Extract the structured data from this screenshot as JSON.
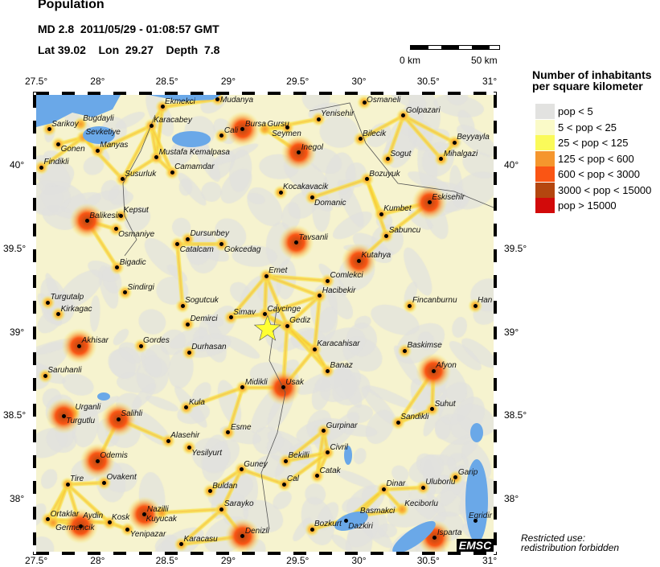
{
  "header": {
    "title": "Population",
    "event_line": "MD 2.8  2011/05/29 - 01:08:57 GMT",
    "location_line": "Lat 39.02    Lon  29.27    Depth  7.8"
  },
  "event": {
    "magnitude": "MD 2.8",
    "date": "2011/05/29",
    "time": "01:08:57 GMT",
    "lat": 39.02,
    "lon": 29.27,
    "depth": 7.8,
    "marker": "star-icon",
    "marker_color": "#ffff33"
  },
  "scale_bar": {
    "left_label": "0 km",
    "right_label": "50 km"
  },
  "map": {
    "lon_range": [
      27.5,
      31
    ],
    "lat_range": [
      37.686,
      40.425
    ],
    "lon_ticks": [
      "27.5°",
      "28°",
      "28.5°",
      "29°",
      "29.5°",
      "30°",
      "30.5°",
      "31°"
    ],
    "lat_ticks": [
      "40°",
      "39.5°",
      "39°",
      "38.5°",
      "38°"
    ],
    "lat_tick_values": [
      40,
      39.5,
      39,
      38.5,
      38
    ],
    "lon_tick_values": [
      27.5,
      28,
      28.5,
      29,
      29.5,
      30,
      30.5,
      31
    ],
    "water_color": "#6aa8e8",
    "cities": [
      {
        "name": "Ekmekci",
        "lon": 28.466,
        "lat": 40.353
      },
      {
        "name": "Mudanya",
        "lon": 28.89,
        "lat": 40.4
      },
      {
        "name": "Osmaneli",
        "lon": 30.01,
        "lat": 40.38
      },
      {
        "name": "Golpazari",
        "lon": 30.31,
        "lat": 40.3
      },
      {
        "name": "Sarikoy",
        "lon": 27.6,
        "lat": 40.22
      },
      {
        "name": "Bugdayli",
        "lon": 27.84,
        "lat": 40.25,
        "nodot": true
      },
      {
        "name": "Karacabey",
        "lon": 28.38,
        "lat": 40.24
      },
      {
        "name": "Cali",
        "lon": 28.92,
        "lat": 40.18
      },
      {
        "name": "Bursa",
        "lon": 29.08,
        "lat": 40.22
      },
      {
        "name": "Gursu",
        "lon": 29.25,
        "lat": 40.22,
        "nodot": true
      },
      {
        "name": "Seymen",
        "lon": 29.42,
        "lat": 40.23
      },
      {
        "name": "Yenisehir",
        "lon": 29.66,
        "lat": 40.28
      },
      {
        "name": "Sevketiye",
        "lon": 27.86,
        "lat": 40.17,
        "nodot": true
      },
      {
        "name": "Gonen",
        "lon": 27.67,
        "lat": 40.13
      },
      {
        "name": "Manyas",
        "lon": 27.97,
        "lat": 40.09
      },
      {
        "name": "Mustafa Kemalpasa",
        "lon": 28.42,
        "lat": 40.05
      },
      {
        "name": "Inegol",
        "lon": 29.51,
        "lat": 40.08
      },
      {
        "name": "Bilecik",
        "lon": 29.98,
        "lat": 40.16
      },
      {
        "name": "Beyyayla",
        "lon": 30.7,
        "lat": 40.14
      },
      {
        "name": "Sogut",
        "lon": 30.19,
        "lat": 40.04
      },
      {
        "name": "Mihalgazi",
        "lon": 30.6,
        "lat": 40.04
      },
      {
        "name": "Findikli",
        "lon": 27.54,
        "lat": 39.99
      },
      {
        "name": "Susurluk",
        "lon": 28.16,
        "lat": 39.92
      },
      {
        "name": "Camamdar",
        "lon": 28.54,
        "lat": 39.96
      },
      {
        "name": "Bozuyuk",
        "lon": 30.03,
        "lat": 39.92
      },
      {
        "name": "Kocakavacik",
        "lon": 29.37,
        "lat": 39.84
      },
      {
        "name": "Domanic",
        "lon": 29.61,
        "lat": 39.81
      },
      {
        "name": "Eskisehir",
        "lon": 30.51,
        "lat": 39.78
      },
      {
        "name": "Kumbet",
        "lon": 30.14,
        "lat": 39.71
      },
      {
        "name": "Kepsut",
        "lon": 28.15,
        "lat": 39.7
      },
      {
        "name": "Balikesir",
        "lon": 27.89,
        "lat": 39.67
      },
      {
        "name": "Osmaniye",
        "lon": 28.11,
        "lat": 39.62
      },
      {
        "name": "Dursunbey",
        "lon": 28.66,
        "lat": 39.56
      },
      {
        "name": "Catalcam",
        "lon": 28.58,
        "lat": 39.53
      },
      {
        "name": "Gokcedag",
        "lon": 28.92,
        "lat": 39.53
      },
      {
        "name": "Tavsanli",
        "lon": 29.49,
        "lat": 39.54
      },
      {
        "name": "Sabuncu",
        "lon": 30.18,
        "lat": 39.58
      },
      {
        "name": "Kutahya",
        "lon": 29.97,
        "lat": 39.43
      },
      {
        "name": "Bigadic",
        "lon": 28.12,
        "lat": 39.39
      },
      {
        "name": "Emet",
        "lon": 29.26,
        "lat": 39.34
      },
      {
        "name": "Comlekci",
        "lon": 29.73,
        "lat": 39.31
      },
      {
        "name": "Sindirgi",
        "lon": 28.18,
        "lat": 39.24
      },
      {
        "name": "Hacibekir",
        "lon": 29.67,
        "lat": 39.22
      },
      {
        "name": "Turgutalp",
        "lon": 27.59,
        "lat": 39.18
      },
      {
        "name": "Fincanburnu",
        "lon": 30.36,
        "lat": 39.16
      },
      {
        "name": "Han",
        "lon": 30.86,
        "lat": 39.16
      },
      {
        "name": "Sogutcuk",
        "lon": 28.62,
        "lat": 39.16
      },
      {
        "name": "Kirkagac",
        "lon": 27.67,
        "lat": 39.11
      },
      {
        "name": "Caycinge",
        "lon": 29.25,
        "lat": 39.11
      },
      {
        "name": "Simav",
        "lon": 28.99,
        "lat": 39.09
      },
      {
        "name": "Demirci",
        "lon": 28.66,
        "lat": 39.05
      },
      {
        "name": "Gediz",
        "lon": 29.42,
        "lat": 39.04
      },
      {
        "name": "Akhisar",
        "lon": 27.83,
        "lat": 38.92
      },
      {
        "name": "Gordes",
        "lon": 28.3,
        "lat": 38.92
      },
      {
        "name": "Karacahisar",
        "lon": 29.63,
        "lat": 38.9
      },
      {
        "name": "Baskimse",
        "lon": 30.32,
        "lat": 38.89
      },
      {
        "name": "Durhasan",
        "lon": 28.67,
        "lat": 38.88
      },
      {
        "name": "Afyon",
        "lon": 30.54,
        "lat": 38.77
      },
      {
        "name": "Banaz",
        "lon": 29.73,
        "lat": 38.77
      },
      {
        "name": "Saruhanli",
        "lon": 27.57,
        "lat": 38.74
      },
      {
        "name": "Midikli",
        "lon": 29.08,
        "lat": 38.67
      },
      {
        "name": "Usak",
        "lon": 29.39,
        "lat": 38.67
      },
      {
        "name": "Kula",
        "lon": 28.65,
        "lat": 38.55
      },
      {
        "name": "Suhut",
        "lon": 30.53,
        "lat": 38.54
      },
      {
        "name": "Urganli",
        "lon": 27.78,
        "lat": 38.52,
        "nodot": true
      },
      {
        "name": "Turgutlu",
        "lon": 27.71,
        "lat": 38.5
      },
      {
        "name": "Salihli",
        "lon": 28.13,
        "lat": 38.48
      },
      {
        "name": "Sandikli",
        "lon": 30.27,
        "lat": 38.46
      },
      {
        "name": "Esme",
        "lon": 28.97,
        "lat": 38.4
      },
      {
        "name": "Gurpinar",
        "lon": 29.7,
        "lat": 38.41
      },
      {
        "name": "Alasehir",
        "lon": 28.51,
        "lat": 38.35
      },
      {
        "name": "Yesilyurt",
        "lon": 28.67,
        "lat": 38.31
      },
      {
        "name": "Civril",
        "lon": 29.73,
        "lat": 38.28
      },
      {
        "name": "Odemis",
        "lon": 27.97,
        "lat": 38.23
      },
      {
        "name": "Bekilli",
        "lon": 29.41,
        "lat": 38.23
      },
      {
        "name": "Guney",
        "lon": 29.07,
        "lat": 38.18
      },
      {
        "name": "Catak",
        "lon": 29.65,
        "lat": 38.14
      },
      {
        "name": "Garip",
        "lon": 30.71,
        "lat": 38.13
      },
      {
        "name": "Tire",
        "lon": 27.74,
        "lat": 38.09
      },
      {
        "name": "Ovakent",
        "lon": 28.02,
        "lat": 38.1
      },
      {
        "name": "Cal",
        "lon": 29.4,
        "lat": 38.09
      },
      {
        "name": "Dinar",
        "lon": 30.16,
        "lat": 38.06
      },
      {
        "name": "Uluborlu",
        "lon": 30.46,
        "lat": 38.07
      },
      {
        "name": "Buldan",
        "lon": 28.83,
        "lat": 38.05
      },
      {
        "name": "Sarayko",
        "lon": 28.92,
        "lat": 37.94
      },
      {
        "name": "Nazilli",
        "lon": 28.33,
        "lat": 37.91
      },
      {
        "name": "Kuyucak",
        "lon": 28.46,
        "lat": 37.92,
        "nodot": true
      },
      {
        "name": "Basmakci",
        "lon": 29.96,
        "lat": 37.9,
        "nodot": true
      },
      {
        "name": "Keciborlu",
        "lon": 30.3,
        "lat": 37.94,
        "nodot": true
      },
      {
        "name": "Dazkiri",
        "lon": 29.87,
        "lat": 37.87
      },
      {
        "name": "Ortaklar",
        "lon": 27.59,
        "lat": 37.88
      },
      {
        "name": "Germencik",
        "lon": 27.63,
        "lat": 37.86,
        "nodot": true
      },
      {
        "name": "Aydin",
        "lon": 27.84,
        "lat": 37.84
      },
      {
        "name": "Kosk",
        "lon": 28.06,
        "lat": 37.86
      },
      {
        "name": "Yenipazar",
        "lon": 28.2,
        "lat": 37.82
      },
      {
        "name": "Egridir",
        "lon": 30.86,
        "lat": 37.87
      },
      {
        "name": "Karacasu",
        "lon": 28.61,
        "lat": 37.73
      },
      {
        "name": "Denizli",
        "lon": 29.08,
        "lat": 37.78
      },
      {
        "name": "Bozkurt",
        "lon": 29.61,
        "lat": 37.82
      },
      {
        "name": "Isparta",
        "lon": 30.55,
        "lat": 37.77
      }
    ],
    "major_urban": [
      "Bursa",
      "Eskisehir",
      "Balikesir",
      "Usak",
      "Denizli",
      "Kutahya",
      "Afyon",
      "Inegol",
      "Odemis",
      "Aydin",
      "Nazilli",
      "Isparta",
      "Tavsanli",
      "Akhisar",
      "Turgutlu",
      "Salihli"
    ]
  },
  "legend": {
    "title_line1": "Number of inhabitants",
    "title_line2": "per square kilometer",
    "items": [
      {
        "label": "pop < 5",
        "color": "#e2e2e0"
      },
      {
        "label": "5 < pop < 25",
        "color": "#fafac8"
      },
      {
        "label": "25 < pop < 125",
        "color": "#fafa5a"
      },
      {
        "label": "125 < pop < 600",
        "color": "#f5962d"
      },
      {
        "label": "600 < pop < 3000",
        "color": "#fa5514"
      },
      {
        "label": "3000 < pop < 15000",
        "color": "#b4460f"
      },
      {
        "label": "pop > 15000",
        "color": "#d20a0a"
      }
    ]
  },
  "footer": {
    "note_line1": "Restricted use:",
    "note_line2": "redistribution forbidden",
    "logo": "EMSC"
  }
}
